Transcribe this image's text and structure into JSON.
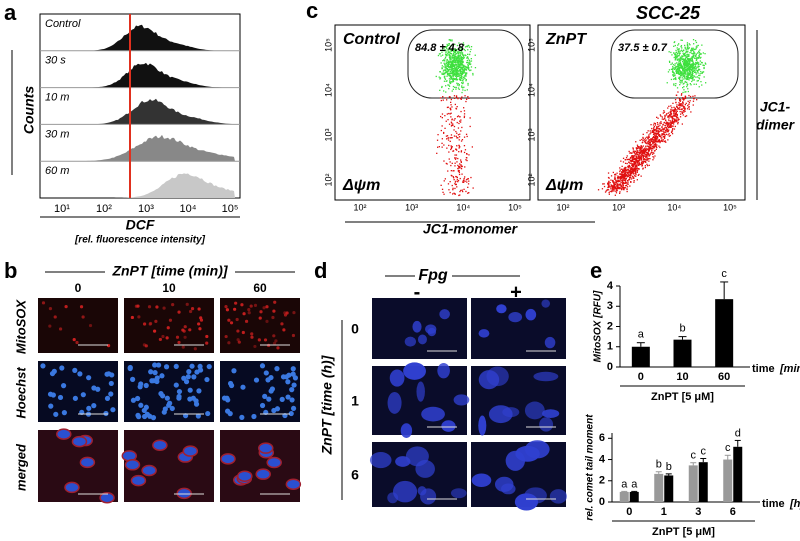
{
  "panel_a": {
    "label": "a",
    "row_labels": [
      "Control",
      "30 s",
      "10 m",
      "30 m",
      "60 m"
    ],
    "y_axis_label": "Counts",
    "x_tick_labels": [
      "10¹",
      "10²",
      "10³",
      "10⁴",
      "10⁵"
    ],
    "x_axis_label": "DCF",
    "x_axis_sublabel": "[rel. fluorescence intensity]"
  },
  "panel_c": {
    "label": "c",
    "cell_line": "SCC-25",
    "plots": [
      {
        "condition": "Control",
        "gate_value": "84.8 ± 4.8",
        "marker": "Δψm"
      },
      {
        "condition": "ZnPT",
        "gate_value": "37.5 ± 0.7",
        "marker": "Δψm"
      }
    ],
    "tick_labels": [
      "10²",
      "10³",
      "10⁴",
      "10⁵"
    ],
    "x_axis_label": "JC1-monomer",
    "y_axis_label": [
      "JC1-",
      "dimer"
    ]
  },
  "panel_b": {
    "label": "b",
    "header": "ZnPT [time (min)]",
    "columns": [
      "0",
      "10",
      "60"
    ],
    "rows": [
      "MitoSOX",
      "Hoechst",
      "merged"
    ]
  },
  "panel_d": {
    "label": "d",
    "header": "Fpg",
    "columns": [
      "-",
      "+"
    ],
    "row_axis_label": "ZnPT [time (h)]",
    "rows": [
      "0",
      "1",
      "6"
    ]
  },
  "panel_e": {
    "label": "e"
  },
  "chart_data": [
    {
      "type": "bar",
      "y_label": "MitoSOX [RFU]",
      "categories": [
        "0",
        "10",
        "60"
      ],
      "values": [
        1.0,
        1.35,
        3.35
      ],
      "errors": [
        0.2,
        0.15,
        0.85
      ],
      "annotations": [
        "a",
        "b",
        "c"
      ],
      "color": "#000000",
      "ylim": [
        0,
        4
      ],
      "yticks": [
        0,
        1,
        2,
        3,
        4
      ],
      "x_unit": [
        "time",
        "[min]"
      ],
      "x_title": "ZnPT [5 μM]"
    },
    {
      "type": "grouped_bar",
      "y_label": "rel. comet tail moment",
      "categories": [
        "0",
        "1",
        "3",
        "6"
      ],
      "series": [
        {
          "color": "#999999",
          "values": [
            0.95,
            2.65,
            3.45,
            4.0
          ],
          "errors": [
            0.05,
            0.2,
            0.25,
            0.4
          ],
          "annotations": [
            "a",
            "b",
            "c",
            "c"
          ]
        },
        {
          "color": "#000000",
          "values": [
            0.95,
            2.5,
            3.75,
            5.2
          ],
          "errors": [
            0.05,
            0.15,
            0.35,
            0.6
          ],
          "annotations": [
            "a",
            "b",
            "c",
            "d"
          ]
        }
      ],
      "ylim": [
        0,
        6.5
      ],
      "yticks": [
        0,
        2,
        4,
        6
      ],
      "x_unit": [
        "time",
        "[h]"
      ],
      "x_title": "ZnPT [5 μM]"
    }
  ]
}
